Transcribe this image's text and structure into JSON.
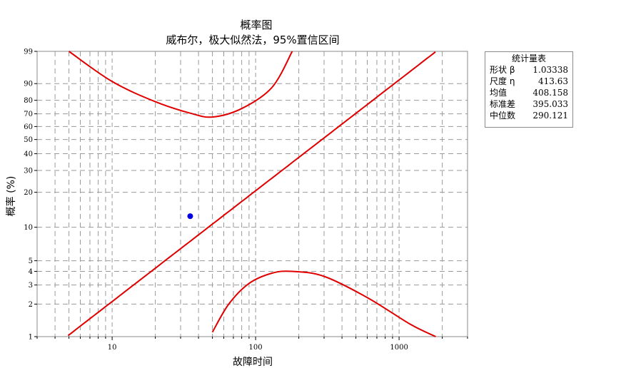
{
  "chart_data": {
    "type": "scatter",
    "title": "概率图",
    "subtitle": "威布尔，极大似然法，95%置信区间",
    "xlabel": "故障时间",
    "ylabel": "概率 (%)",
    "x_scale": "log",
    "y_scale": "weibull",
    "xlim": [
      3,
      3000
    ],
    "ylim": [
      1,
      99
    ],
    "x_ticks": [
      10,
      100,
      1000
    ],
    "x_tick_labels": [
      "10",
      "100",
      "1000"
    ],
    "y_ticks": [
      1,
      2,
      3,
      4,
      5,
      10,
      20,
      30,
      40,
      50,
      60,
      70,
      80,
      90,
      99
    ],
    "y_tick_labels": [
      "1",
      "2",
      "3",
      "4",
      "5",
      "10",
      "20",
      "30",
      "40",
      "50",
      "60",
      "70",
      "80",
      "90",
      "99"
    ],
    "grid": true,
    "points": [
      {
        "x": 35,
        "y": 12.5
      }
    ],
    "fit": {
      "shape": 1.03338,
      "scale": 413.63
    },
    "ci_upper": [
      [
        5,
        99
      ],
      [
        10,
        91
      ],
      [
        20,
        79
      ],
      [
        35,
        70.5
      ],
      [
        50,
        67.5
      ],
      [
        80,
        74
      ],
      [
        130,
        88
      ],
      [
        180,
        99
      ]
    ],
    "ci_lower": [
      [
        50,
        1.1
      ],
      [
        65,
        2
      ],
      [
        90,
        3.1
      ],
      [
        130,
        3.85
      ],
      [
        180,
        4
      ],
      [
        300,
        3.6
      ],
      [
        600,
        2.3
      ],
      [
        1200,
        1.3
      ],
      [
        1800,
        1
      ]
    ],
    "colors": {
      "fit": "#e00000",
      "ci": "#e00000",
      "points": "#0000e0",
      "grid": "#9a9a9a"
    }
  },
  "stats": {
    "title": "统计量表",
    "rows": [
      {
        "label": "形状 β",
        "value": "1.03338"
      },
      {
        "label": "尺度 η",
        "value": "413.63"
      },
      {
        "label": "均值",
        "value": "408.158"
      },
      {
        "label": "标准差",
        "value": "395.033"
      },
      {
        "label": "中位数",
        "value": "290.121"
      }
    ]
  }
}
